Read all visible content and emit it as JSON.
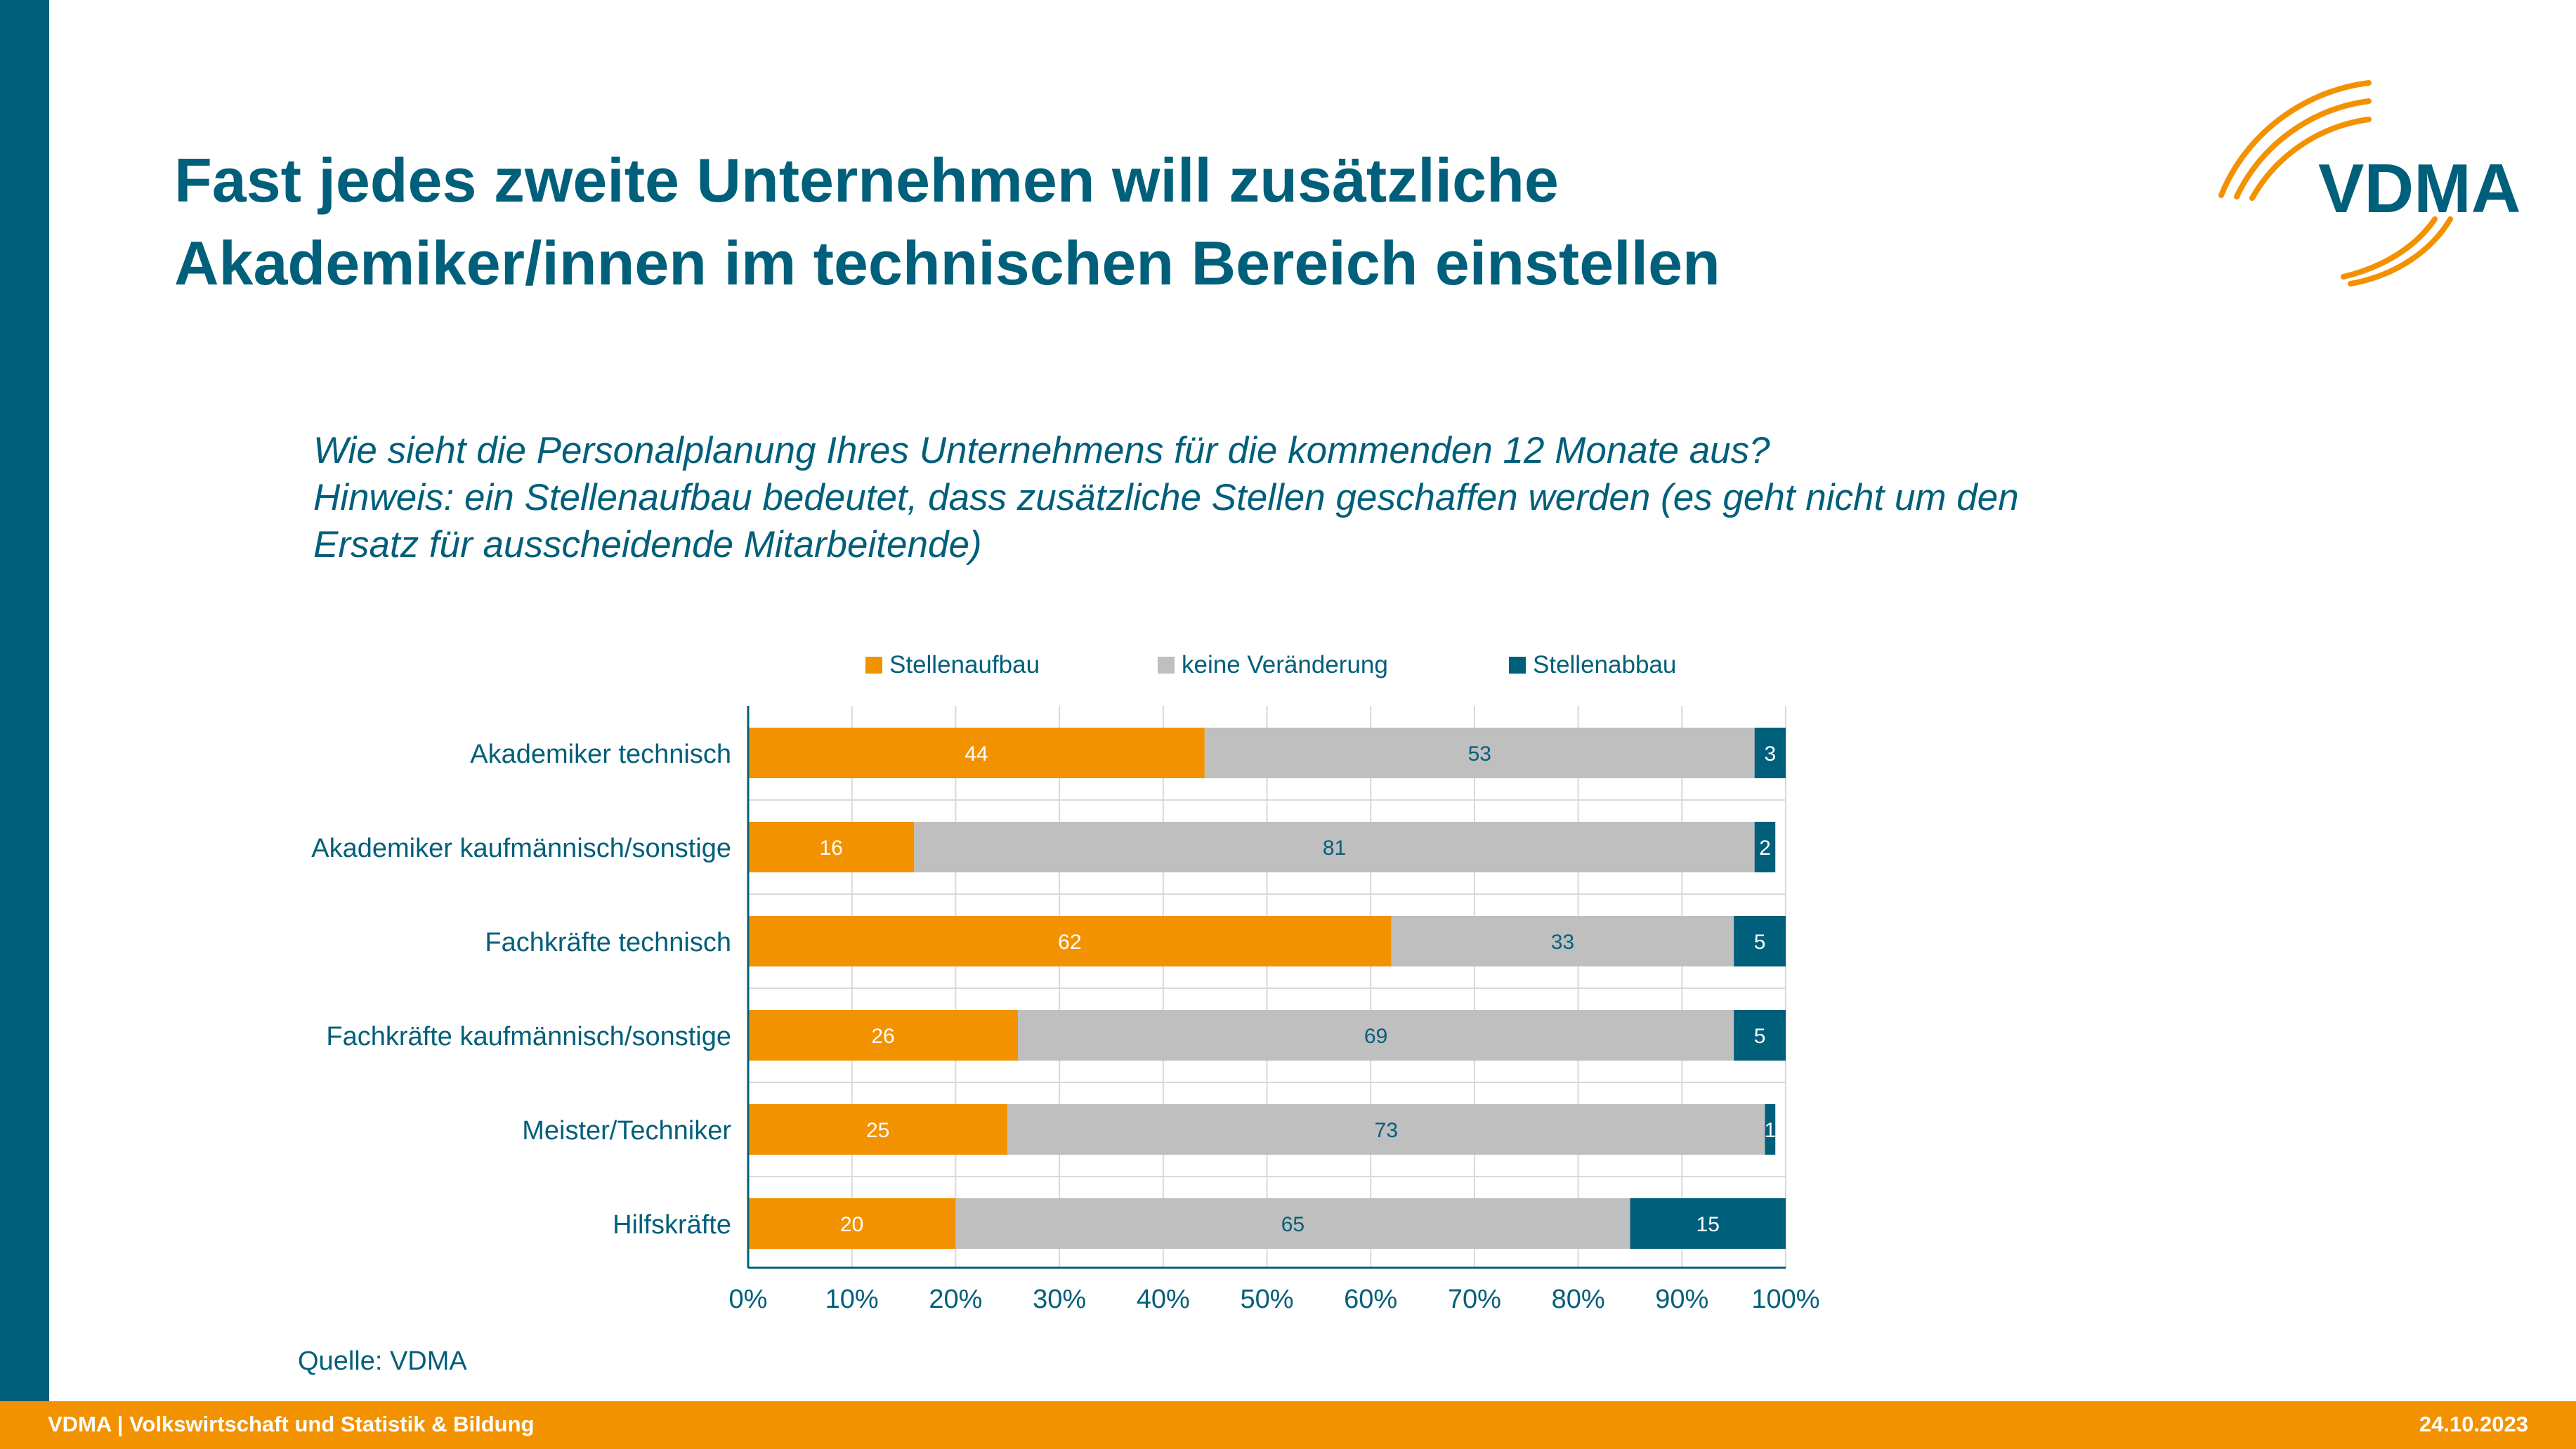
{
  "header": {
    "title_line1": "Fast jedes zweite Unternehmen will zusätzliche",
    "title_line2": "Akademiker/innen im technischen Bereich einstellen",
    "logo_text": "VDMA"
  },
  "question": {
    "line1": "Wie sieht die Personalplanung Ihres Unternehmens für die kommenden 12 Monate aus?",
    "line2": "Hinweis: ein Stellenaufbau bedeutet, dass zusätzliche Stellen geschaffen werden (es geht nicht um den",
    "line3": "Ersatz für ausscheidende Mitarbeitende)"
  },
  "source": "Quelle: VDMA",
  "footer": {
    "left": "VDMA | Volkswirtschaft und Statistik & Bildung",
    "right": "24.10.2023"
  },
  "colors": {
    "brand_blue": "#005f7a",
    "brand_orange": "#f39200",
    "grey": "#bfbfbf"
  },
  "chart_data": {
    "type": "bar",
    "orientation": "horizontal",
    "stacked": true,
    "percent_stacked": true,
    "title": "",
    "xlabel": "",
    "ylabel": "",
    "xlim": [
      0,
      100
    ],
    "x_ticks": [
      "0%",
      "10%",
      "20%",
      "30%",
      "40%",
      "50%",
      "60%",
      "70%",
      "80%",
      "90%",
      "100%"
    ],
    "grid": true,
    "legend": "top",
    "categories": [
      "Akademiker technisch",
      "Akademiker kaufmännisch/sonstige",
      "Fachkräfte technisch",
      "Fachkräfte kaufmännisch/sonstige",
      "Meister/Techniker",
      "Hilfskräfte"
    ],
    "series": [
      {
        "name": "Stellenaufbau",
        "color": "#f39200",
        "label_color": "#ffffff",
        "values": [
          44,
          16,
          62,
          26,
          25,
          20
        ]
      },
      {
        "name": "keine Veränderung",
        "color": "#bfbfbf",
        "label_color": "#005f7a",
        "values": [
          53,
          81,
          33,
          69,
          73,
          65
        ]
      },
      {
        "name": "Stellenabbau",
        "color": "#005f7a",
        "label_color": "#ffffff",
        "values": [
          3,
          2,
          5,
          5,
          1,
          15
        ]
      }
    ]
  }
}
